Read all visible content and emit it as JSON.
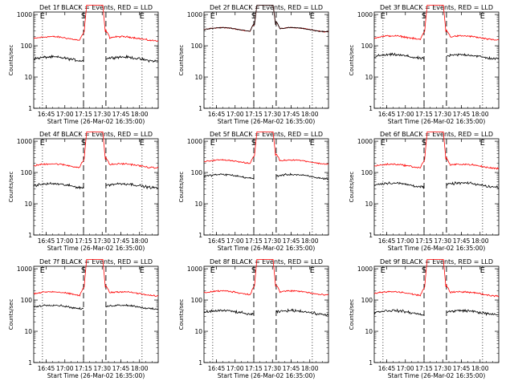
{
  "chart_data": [
    {
      "type": "line",
      "title": "Det 1f BLACK = Events, RED = LLD",
      "xlabel": "Start Time (26-Mar-02 16:35:00)",
      "ylabel": "Counts/sec",
      "series": [
        {
          "color": "#ff0000",
          "base": 170,
          "peak": 1000,
          "noise": 0.09
        },
        {
          "color": "#000000",
          "base": 38,
          "peak": null,
          "noise": 0.14
        }
      ]
    },
    {
      "type": "line",
      "title": "Det 2f BLACK = Events, RED = LLD",
      "xlabel": "Start Time (26-Mar-02 16:35:00)",
      "ylabel": "Counts/sec",
      "series": [
        {
          "color": "#ff0000",
          "base": 330,
          "peak": 1000,
          "noise": 0.05
        },
        {
          "color": "#000000",
          "base": 330,
          "peak": 1000,
          "noise": 0.05
        }
      ]
    },
    {
      "type": "line",
      "title": "Det 3f BLACK = Events, RED = LLD",
      "xlabel": "Start Time (26-Mar-02 16:35:00)",
      "ylabel": "Counts/sec",
      "series": [
        {
          "color": "#ff0000",
          "base": 180,
          "peak": 1000,
          "noise": 0.09
        },
        {
          "color": "#000000",
          "base": 45,
          "peak": null,
          "noise": 0.14
        }
      ]
    },
    {
      "type": "line",
      "title": "Det 4f BLACK = Events, RED = LLD",
      "xlabel": "Start Time (26-Mar-02 16:35:00)",
      "ylabel": "Counts/sec",
      "series": [
        {
          "color": "#ff0000",
          "base": 165,
          "peak": 1000,
          "noise": 0.09
        },
        {
          "color": "#000000",
          "base": 38,
          "peak": null,
          "noise": 0.14
        }
      ]
    },
    {
      "type": "line",
      "title": "Det 5f BLACK = Events, RED = LLD",
      "xlabel": "Start Time (26-Mar-02 16:35:00)",
      "ylabel": "Counts/sec",
      "series": [
        {
          "color": "#ff0000",
          "base": 220,
          "peak": 1000,
          "noise": 0.07
        },
        {
          "color": "#000000",
          "base": 75,
          "peak": null,
          "noise": 0.1
        }
      ]
    },
    {
      "type": "line",
      "title": "Det 6f BLACK = Events, RED = LLD",
      "xlabel": "Start Time (26-Mar-02 16:35:00)",
      "ylabel": "Counts/sec",
      "series": [
        {
          "color": "#ff0000",
          "base": 160,
          "peak": 1000,
          "noise": 0.09
        },
        {
          "color": "#000000",
          "base": 40,
          "peak": null,
          "noise": 0.14
        }
      ]
    },
    {
      "type": "line",
      "title": "Det 7f BLACK = Events, RED = LLD",
      "xlabel": "Start Time (26-Mar-02 16:35:00)",
      "ylabel": "Counts/sec",
      "series": [
        {
          "color": "#ff0000",
          "base": 160,
          "peak": 1000,
          "noise": 0.08
        },
        {
          "color": "#000000",
          "base": 60,
          "peak": null,
          "noise": 0.1
        }
      ]
    },
    {
      "type": "line",
      "title": "Det 8f BLACK = Events, RED = LLD",
      "xlabel": "Start Time (26-Mar-02 16:35:00)",
      "ylabel": "Counts/sec",
      "series": [
        {
          "color": "#ff0000",
          "base": 170,
          "peak": 1000,
          "noise": 0.09
        },
        {
          "color": "#000000",
          "base": 40,
          "peak": null,
          "noise": 0.14
        }
      ]
    },
    {
      "type": "line",
      "title": "Det 9f BLACK = Events, RED = LLD",
      "xlabel": "Start Time (26-Mar-02 16:35:00)",
      "ylabel": "Counts/sec",
      "series": [
        {
          "color": "#ff0000",
          "base": 160,
          "peak": 1000,
          "noise": 0.09
        },
        {
          "color": "#000000",
          "base": 40,
          "peak": null,
          "noise": 0.14
        }
      ]
    }
  ],
  "shared": {
    "x_range_min": [
      0,
      100
    ],
    "y_range": [
      1,
      1200
    ],
    "y_scale": "log",
    "y_ticks": [
      1,
      10,
      100,
      1000
    ],
    "y_tick_labels": [
      "1",
      "10",
      "100",
      "1000"
    ],
    "x_ticks_min": [
      10,
      25,
      40,
      55,
      70,
      85
    ],
    "x_tick_labels": [
      "16:45",
      "17:00",
      "17:15",
      "17:30",
      "17:45",
      "18:00"
    ],
    "dotted_lines_min": [
      7,
      87
    ],
    "dashed_lines_min": [
      40,
      58
    ],
    "markers": [
      {
        "label": "E",
        "at_min": 7
      },
      {
        "label": "S",
        "at_min": 40
      },
      {
        "label": "E",
        "at_min": 87
      }
    ],
    "gap_min": [
      40,
      58
    ]
  }
}
